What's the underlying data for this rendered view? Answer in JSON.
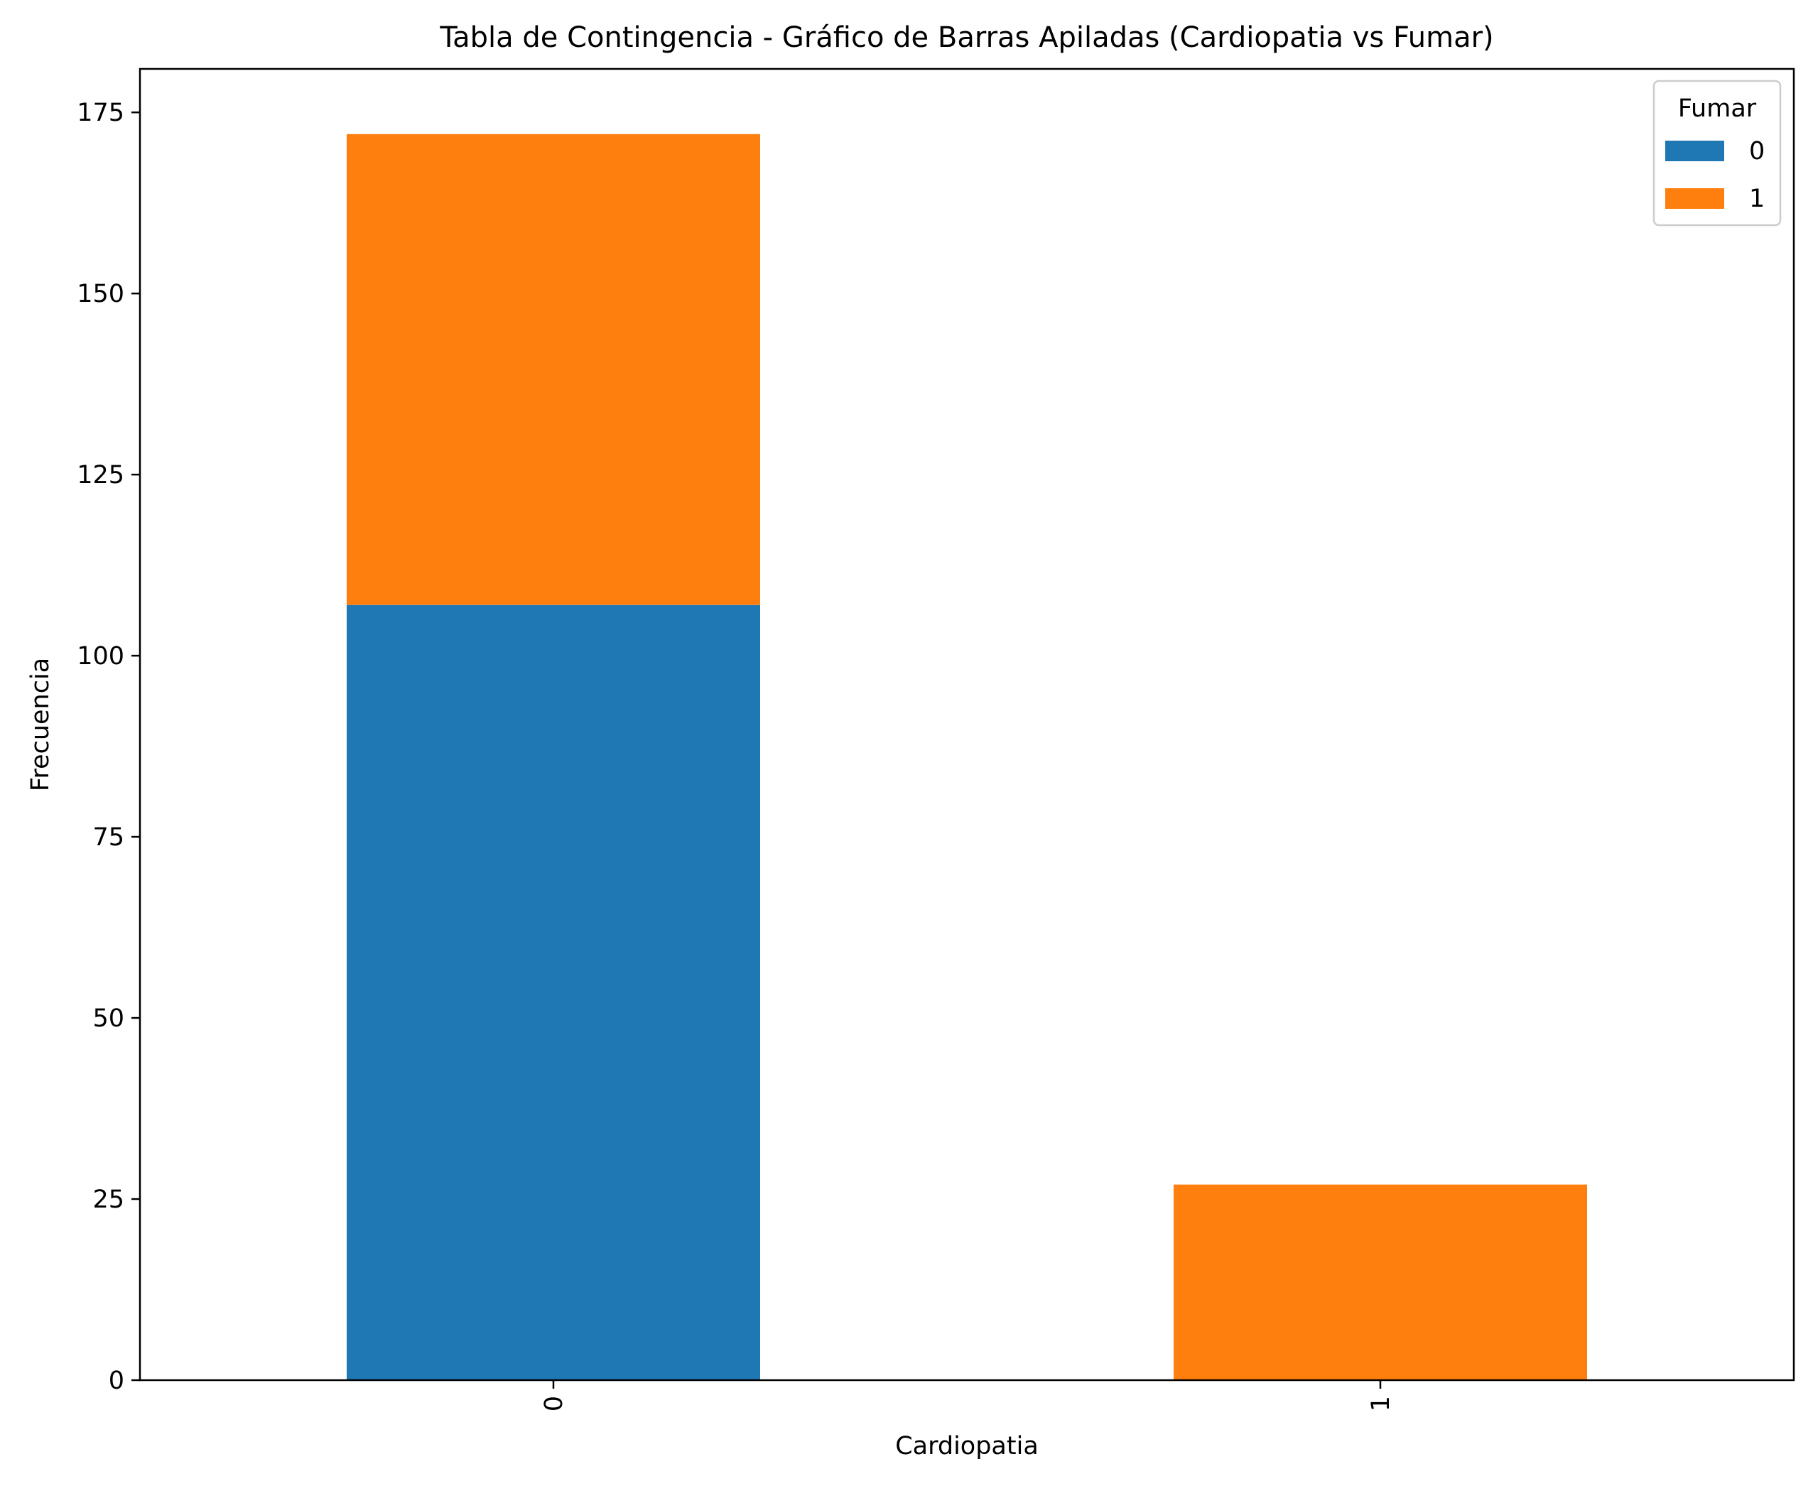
{
  "chart_data": {
    "type": "bar",
    "stacked": true,
    "title": "Tabla de Contingencia - Gráfico de Barras Apiladas (Cardiopatia vs Fumar)",
    "xlabel": "Cardiopatia",
    "ylabel": "Frecuencia",
    "categories": [
      "0",
      "1"
    ],
    "ylim": [
      0,
      181
    ],
    "yticks": [
      0,
      25,
      50,
      75,
      100,
      125,
      150,
      175
    ],
    "grid": false,
    "legend": {
      "title": "Fumar",
      "placement": "top-right"
    },
    "series": [
      {
        "name": "0",
        "color": "#1f77b4",
        "values": [
          107,
          0
        ]
      },
      {
        "name": "1",
        "color": "#ff7f0e",
        "values": [
          65,
          27
        ]
      }
    ]
  }
}
